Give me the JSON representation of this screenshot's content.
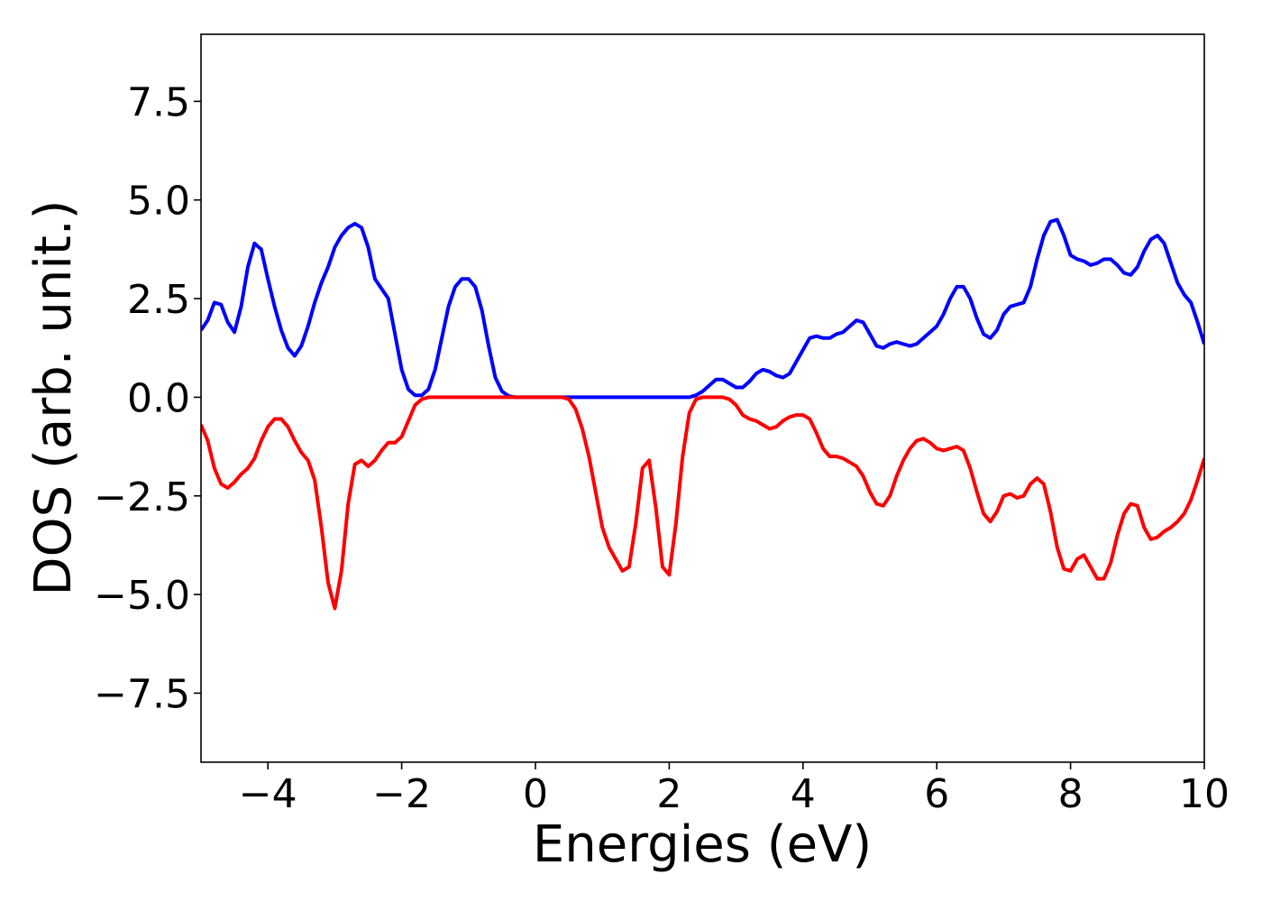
{
  "chart_data": {
    "type": "line",
    "xlabel": "Energies (eV)",
    "ylabel": "DOS (arb. unit.)",
    "x": [
      -5,
      -4.9,
      -4.8,
      -4.7,
      -4.6,
      -4.5,
      -4.4,
      -4.3,
      -4.2,
      -4.1,
      -4,
      -3.9,
      -3.8,
      -3.7,
      -3.6,
      -3.5,
      -3.4,
      -3.3,
      -3.2,
      -3.1,
      -3,
      -2.9,
      -2.8,
      -2.7,
      -2.6,
      -2.5,
      -2.4,
      -2.3,
      -2.2,
      -2.1,
      -2,
      -1.9,
      -1.8,
      -1.7,
      -1.6,
      -1.5,
      -1.4,
      -1.3,
      -1.2,
      -1.1,
      -1,
      -0.9,
      -0.8,
      -0.7,
      -0.6,
      -0.5,
      -0.4,
      -0.3,
      -0.2,
      -0.1,
      0,
      0.1,
      0.2,
      0.3,
      0.4,
      0.5,
      0.6,
      0.7,
      0.8,
      0.9,
      1,
      1.1,
      1.2,
      1.3,
      1.4,
      1.5,
      1.6,
      1.7,
      1.8,
      1.9,
      2,
      2.1,
      2.2,
      2.3,
      2.4,
      2.5,
      2.6,
      2.7,
      2.8,
      2.9,
      3,
      3.1,
      3.2,
      3.3,
      3.4,
      3.5,
      3.6,
      3.7,
      3.8,
      3.9,
      4,
      4.1,
      4.2,
      4.3,
      4.4,
      4.5,
      4.6,
      4.7,
      4.8,
      4.9,
      5,
      5.1,
      5.2,
      5.3,
      5.4,
      5.5,
      5.6,
      5.7,
      5.8,
      5.9,
      6,
      6.1,
      6.2,
      6.3,
      6.4,
      6.5,
      6.6,
      6.7,
      6.8,
      6.9,
      7,
      7.1,
      7.2,
      7.3,
      7.4,
      7.5,
      7.6,
      7.7,
      7.8,
      7.9,
      8,
      8.1,
      8.2,
      8.3,
      8.4,
      8.5,
      8.6,
      8.7,
      8.8,
      8.9,
      9,
      9.1,
      9.2,
      9.3,
      9.4,
      9.5,
      9.6,
      9.7,
      9.8,
      9.9,
      10
    ],
    "series": [
      {
        "color": "#0000ff",
        "values": [
          1.7,
          1.95,
          2.4,
          2.35,
          1.9,
          1.65,
          2.3,
          3.3,
          3.9,
          3.75,
          3.0,
          2.3,
          1.7,
          1.25,
          1.05,
          1.3,
          1.8,
          2.4,
          2.9,
          3.3,
          3.8,
          4.1,
          4.3,
          4.4,
          4.3,
          3.8,
          3.0,
          2.75,
          2.5,
          1.6,
          0.7,
          0.2,
          0.05,
          0.05,
          0.2,
          0.7,
          1.5,
          2.3,
          2.8,
          3.0,
          3.0,
          2.8,
          2.2,
          1.3,
          0.5,
          0.15,
          0.03,
          0,
          0,
          0,
          0,
          0,
          0,
          0,
          0,
          0,
          0,
          0,
          0,
          0,
          0,
          0,
          0,
          0,
          0,
          0,
          0,
          0,
          0,
          0,
          0,
          0,
          0,
          0,
          0.05,
          0.15,
          0.3,
          0.45,
          0.45,
          0.35,
          0.25,
          0.25,
          0.4,
          0.6,
          0.7,
          0.65,
          0.55,
          0.5,
          0.6,
          0.9,
          1.2,
          1.5,
          1.55,
          1.5,
          1.5,
          1.6,
          1.65,
          1.8,
          1.95,
          1.9,
          1.6,
          1.3,
          1.25,
          1.35,
          1.4,
          1.35,
          1.3,
          1.35,
          1.5,
          1.65,
          1.8,
          2.1,
          2.5,
          2.8,
          2.8,
          2.5,
          2.0,
          1.6,
          1.5,
          1.7,
          2.1,
          2.3,
          2.35,
          2.4,
          2.8,
          3.5,
          4.1,
          4.45,
          4.5,
          4.1,
          3.6,
          3.5,
          3.45,
          3.35,
          3.4,
          3.5,
          3.5,
          3.35,
          3.15,
          3.1,
          3.3,
          3.7,
          4.0,
          4.1,
          3.9,
          3.4,
          2.9,
          2.6,
          2.4,
          1.9,
          1.35
        ]
      },
      {
        "color": "#ff0000",
        "values": [
          -0.7,
          -1.1,
          -1.8,
          -2.2,
          -2.3,
          -2.15,
          -1.95,
          -1.8,
          -1.55,
          -1.1,
          -0.75,
          -0.55,
          -0.55,
          -0.75,
          -1.1,
          -1.4,
          -1.6,
          -2.1,
          -3.3,
          -4.7,
          -5.35,
          -4.4,
          -2.7,
          -1.7,
          -1.6,
          -1.75,
          -1.6,
          -1.35,
          -1.15,
          -1.15,
          -1.0,
          -0.6,
          -0.2,
          -0.05,
          0,
          0,
          0,
          0,
          0,
          0,
          0,
          0,
          0,
          0,
          0,
          0,
          0,
          0,
          0,
          0,
          0,
          0,
          0,
          0,
          0,
          -0.05,
          -0.3,
          -0.8,
          -1.5,
          -2.4,
          -3.3,
          -3.8,
          -4.1,
          -4.4,
          -4.3,
          -3.2,
          -1.8,
          -1.6,
          -2.8,
          -4.3,
          -4.5,
          -3.2,
          -1.5,
          -0.4,
          -0.05,
          0,
          0,
          0,
          0,
          -0.05,
          -0.2,
          -0.45,
          -0.55,
          -0.6,
          -0.7,
          -0.8,
          -0.75,
          -0.6,
          -0.5,
          -0.45,
          -0.45,
          -0.55,
          -0.9,
          -1.3,
          -1.5,
          -1.5,
          -1.55,
          -1.65,
          -1.75,
          -2.0,
          -2.4,
          -2.7,
          -2.75,
          -2.5,
          -2.0,
          -1.6,
          -1.3,
          -1.1,
          -1.05,
          -1.15,
          -1.3,
          -1.35,
          -1.3,
          -1.25,
          -1.35,
          -1.8,
          -2.4,
          -2.95,
          -3.15,
          -2.9,
          -2.5,
          -2.45,
          -2.55,
          -2.5,
          -2.2,
          -2.05,
          -2.2,
          -2.9,
          -3.8,
          -4.35,
          -4.4,
          -4.1,
          -4.0,
          -4.3,
          -4.6,
          -4.6,
          -4.2,
          -3.5,
          -2.95,
          -2.7,
          -2.75,
          -3.3,
          -3.6,
          -3.55,
          -3.4,
          -3.3,
          -3.15,
          -2.95,
          -2.6,
          -2.1,
          -1.55
        ]
      }
    ],
    "xlim": [
      -5,
      10
    ],
    "ylim": [
      -9.25,
      9.2
    ],
    "xticks": [
      {
        "value": -4,
        "label": "−4"
      },
      {
        "value": -2,
        "label": "−2"
      },
      0,
      2,
      4,
      6,
      8,
      10
    ],
    "yticks": [
      {
        "value": -7.5,
        "label": "−7.5"
      },
      {
        "value": -5,
        "label": "−5.0"
      },
      {
        "value": -2.5,
        "label": "−2.5"
      },
      {
        "value": 0,
        "label": "0.0"
      },
      2.5,
      {
        "value": 5,
        "label": "5.0"
      },
      7.5
    ],
    "grid": false
  }
}
